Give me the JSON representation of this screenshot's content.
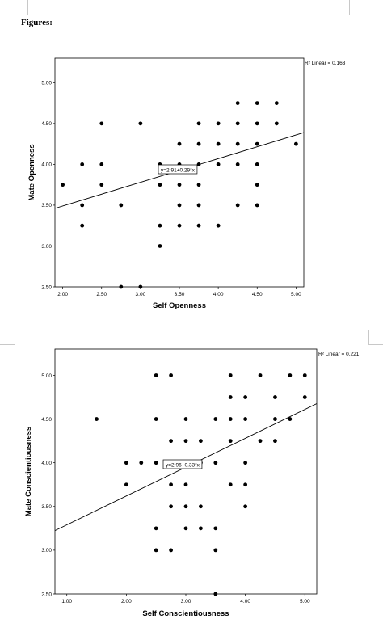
{
  "page": {
    "heading": "Figures:"
  },
  "chart_data": [
    {
      "type": "scatter",
      "title": "",
      "xlabel": "Self Openness",
      "ylabel": "Mate Openness",
      "xlim": [
        1.9,
        5.1
      ],
      "ylim": [
        2.5,
        5.3
      ],
      "xticks": [
        "2.00",
        "2.50",
        "3.00",
        "3.50",
        "4.00",
        "4.50",
        "5.00"
      ],
      "yticks": [
        "2.50",
        "3.00",
        "3.50",
        "4.00",
        "4.50",
        "5.00"
      ],
      "r2_label": "R² Linear = 0.163",
      "equation": "y=2.91+0.29*x",
      "fit": {
        "intercept": 2.91,
        "slope": 0.29
      },
      "grid": false,
      "points": [
        {
          "x": 2.0,
          "y": 3.75
        },
        {
          "x": 2.25,
          "y": 4.0
        },
        {
          "x": 2.25,
          "y": 3.5
        },
        {
          "x": 2.25,
          "y": 3.25
        },
        {
          "x": 2.5,
          "y": 4.5
        },
        {
          "x": 2.5,
          "y": 4.0
        },
        {
          "x": 2.5,
          "y": 3.75
        },
        {
          "x": 2.75,
          "y": 3.5
        },
        {
          "x": 2.75,
          "y": 2.5
        },
        {
          "x": 3.0,
          "y": 4.5
        },
        {
          "x": 3.0,
          "y": 2.5
        },
        {
          "x": 3.25,
          "y": 4.0
        },
        {
          "x": 3.25,
          "y": 3.75
        },
        {
          "x": 3.25,
          "y": 3.25
        },
        {
          "x": 3.25,
          "y": 3.0
        },
        {
          "x": 3.5,
          "y": 4.25
        },
        {
          "x": 3.5,
          "y": 4.0
        },
        {
          "x": 3.5,
          "y": 3.75
        },
        {
          "x": 3.5,
          "y": 3.5
        },
        {
          "x": 3.5,
          "y": 3.25
        },
        {
          "x": 3.75,
          "y": 4.5
        },
        {
          "x": 3.75,
          "y": 4.25
        },
        {
          "x": 3.75,
          "y": 4.0
        },
        {
          "x": 3.75,
          "y": 3.75
        },
        {
          "x": 3.75,
          "y": 3.5
        },
        {
          "x": 3.75,
          "y": 3.25
        },
        {
          "x": 4.0,
          "y": 4.5
        },
        {
          "x": 4.0,
          "y": 4.25
        },
        {
          "x": 4.0,
          "y": 4.0
        },
        {
          "x": 4.0,
          "y": 3.25
        },
        {
          "x": 4.25,
          "y": 4.75
        },
        {
          "x": 4.25,
          "y": 4.5
        },
        {
          "x": 4.25,
          "y": 4.25
        },
        {
          "x": 4.25,
          "y": 4.0
        },
        {
          "x": 4.25,
          "y": 3.5
        },
        {
          "x": 4.5,
          "y": 4.75
        },
        {
          "x": 4.5,
          "y": 4.5
        },
        {
          "x": 4.5,
          "y": 4.25
        },
        {
          "x": 4.5,
          "y": 4.0
        },
        {
          "x": 4.5,
          "y": 3.75
        },
        {
          "x": 4.5,
          "y": 3.5
        },
        {
          "x": 4.75,
          "y": 4.75
        },
        {
          "x": 4.75,
          "y": 4.5
        },
        {
          "x": 5.0,
          "y": 4.25
        }
      ]
    },
    {
      "type": "scatter",
      "title": "",
      "xlabel": "Self Conscientiousness",
      "ylabel": "Mate Conscientiousness",
      "xlim": [
        0.8,
        5.2
      ],
      "ylim": [
        2.5,
        5.3
      ],
      "xticks": [
        "1.00",
        "2.00",
        "3.00",
        "4.00",
        "5.00"
      ],
      "yticks": [
        "2.50",
        "3.00",
        "3.50",
        "4.00",
        "4.50",
        "5.00"
      ],
      "r2_label": "R² Linear = 0.221",
      "equation": "y=2.96+0.33*x",
      "fit": {
        "intercept": 2.96,
        "slope": 0.33
      },
      "grid": false,
      "points": [
        {
          "x": 1.5,
          "y": 4.5
        },
        {
          "x": 2.0,
          "y": 4.0
        },
        {
          "x": 2.0,
          "y": 3.75
        },
        {
          "x": 2.25,
          "y": 4.0
        },
        {
          "x": 2.5,
          "y": 5.0
        },
        {
          "x": 2.5,
          "y": 4.5
        },
        {
          "x": 2.5,
          "y": 4.0
        },
        {
          "x": 2.5,
          "y": 3.25
        },
        {
          "x": 2.5,
          "y": 3.0
        },
        {
          "x": 2.75,
          "y": 5.0
        },
        {
          "x": 2.75,
          "y": 4.25
        },
        {
          "x": 2.75,
          "y": 3.75
        },
        {
          "x": 2.75,
          "y": 3.5
        },
        {
          "x": 2.75,
          "y": 3.0
        },
        {
          "x": 3.0,
          "y": 4.5
        },
        {
          "x": 3.0,
          "y": 4.25
        },
        {
          "x": 3.0,
          "y": 3.75
        },
        {
          "x": 3.0,
          "y": 3.5
        },
        {
          "x": 3.0,
          "y": 3.25
        },
        {
          "x": 3.25,
          "y": 4.25
        },
        {
          "x": 3.25,
          "y": 4.0
        },
        {
          "x": 3.25,
          "y": 3.5
        },
        {
          "x": 3.25,
          "y": 3.25
        },
        {
          "x": 3.5,
          "y": 4.5
        },
        {
          "x": 3.5,
          "y": 4.0
        },
        {
          "x": 3.5,
          "y": 3.25
        },
        {
          "x": 3.5,
          "y": 3.0
        },
        {
          "x": 3.5,
          "y": 2.5
        },
        {
          "x": 3.75,
          "y": 5.0
        },
        {
          "x": 3.75,
          "y": 4.75
        },
        {
          "x": 3.75,
          "y": 4.5
        },
        {
          "x": 3.75,
          "y": 4.25
        },
        {
          "x": 3.75,
          "y": 3.75
        },
        {
          "x": 4.0,
          "y": 4.75
        },
        {
          "x": 4.0,
          "y": 4.5
        },
        {
          "x": 4.0,
          "y": 4.0
        },
        {
          "x": 4.0,
          "y": 3.75
        },
        {
          "x": 4.0,
          "y": 3.5
        },
        {
          "x": 4.25,
          "y": 5.0
        },
        {
          "x": 4.25,
          "y": 4.25
        },
        {
          "x": 4.5,
          "y": 4.75
        },
        {
          "x": 4.5,
          "y": 4.5
        },
        {
          "x": 4.5,
          "y": 4.25
        },
        {
          "x": 4.75,
          "y": 5.0
        },
        {
          "x": 4.75,
          "y": 4.5
        },
        {
          "x": 5.0,
          "y": 5.0
        },
        {
          "x": 5.0,
          "y": 4.75
        }
      ]
    }
  ]
}
